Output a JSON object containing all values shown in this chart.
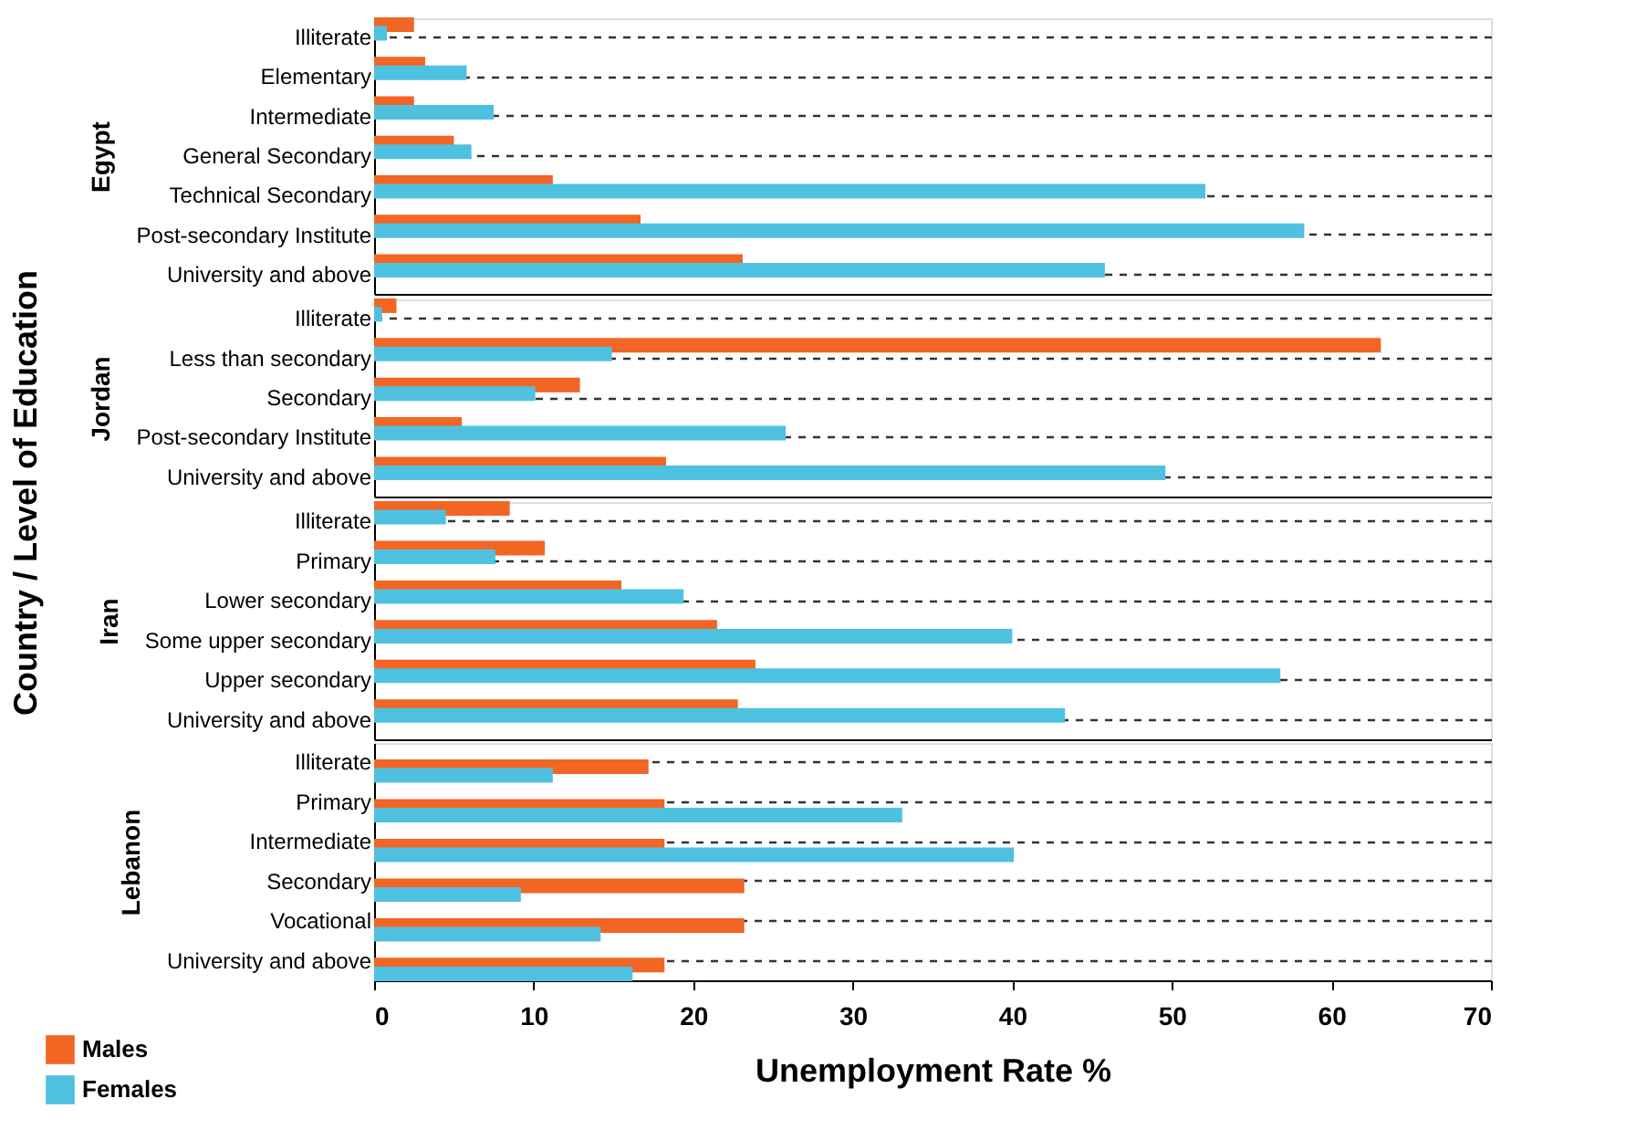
{
  "chart_data": [
    {
      "type": "bar",
      "orientation": "horizontal",
      "ylabel": "Egypt",
      "annotations": [
        "Country / Level of Education"
      ],
      "categories": [
        "Illiterate",
        "Elementary",
        "Intermediate",
        "General Secondary",
        "Technical Secondary",
        "Post-secondary Institute",
        "University and above"
      ],
      "series": [
        {
          "color": "#f26522",
          "values": [
            2.5,
            3.2,
            2.5,
            5.0,
            11.2,
            16.7,
            23.1
          ]
        },
        {
          "color": "#4fc1e0",
          "values": [
            0.8,
            5.8,
            7.5,
            6.1,
            52.1,
            58.3,
            45.8
          ]
        }
      ],
      "xlim": [
        0,
        70
      ],
      "xticks": [
        0,
        10,
        20,
        30,
        40,
        50,
        60,
        70
      ],
      "grid": "y",
      "tick_labels": "y"
    },
    {
      "type": "bar",
      "orientation": "horizontal",
      "ylabel": "Jordan",
      "categories": [
        "Illiterate",
        "Less than secondary",
        "Secondary",
        "Post-secondary Institute",
        "University and above"
      ],
      "series": [
        {
          "color": "#f26522",
          "values": [
            1.4,
            63.1,
            12.9,
            5.5,
            18.3
          ]
        },
        {
          "color": "#4fc1e0",
          "values": [
            0.5,
            14.9,
            10.1,
            25.8,
            49.6
          ]
        }
      ],
      "xlim": [
        0,
        70
      ],
      "xticks": [
        0,
        10,
        20,
        30,
        40,
        50,
        60,
        70
      ],
      "grid": "y",
      "tick_labels": "y"
    },
    {
      "type": "bar",
      "orientation": "horizontal",
      "ylabel": "Iran",
      "categories": [
        "Illiterate",
        "Primary",
        "Lower secondary",
        "Some upper secondary",
        "Upper secondary",
        "University and above"
      ],
      "series": [
        {
          "color": "#f26522",
          "values": [
            8.5,
            10.7,
            15.5,
            21.5,
            23.9,
            22.8
          ]
        },
        {
          "color": "#4fc1e0",
          "values": [
            4.5,
            7.6,
            19.4,
            40.0,
            56.8,
            43.3
          ]
        }
      ],
      "xlim": [
        0,
        70
      ],
      "xticks": [
        0,
        10,
        20,
        30,
        40,
        50,
        60,
        70
      ],
      "grid": "y",
      "tick_labels": "y"
    },
    {
      "type": "bar",
      "orientation": "horizontal",
      "ylabel": "Lebanon",
      "xlabel": "Unemployment Rate %",
      "categories": [
        "Illiterate",
        "Primary",
        "Intermediate",
        "Secondary",
        "Vocational",
        "University and above"
      ],
      "series": [
        {
          "name": "Males",
          "color": "#f26522",
          "values": [
            17.2,
            18.2,
            18.2,
            23.2,
            23.2,
            18.2
          ]
        },
        {
          "name": "Females",
          "color": "#4fc1e0",
          "values": [
            11.2,
            33.1,
            40.1,
            9.2,
            14.2,
            16.2
          ]
        }
      ],
      "xlim": [
        0,
        70
      ],
      "xticks": [
        0,
        10,
        20,
        30,
        40,
        50,
        60,
        70
      ],
      "grid": "y",
      "legend": "bottom left"
    }
  ]
}
